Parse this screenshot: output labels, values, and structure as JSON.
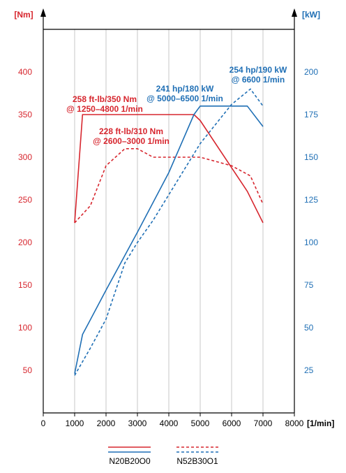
{
  "chart_data": {
    "type": "line",
    "x_axis": {
      "unit_label": "[1/min]",
      "range": [
        0,
        8000
      ],
      "ticks": [
        0,
        1000,
        2000,
        3000,
        4000,
        5000,
        6000,
        7000,
        8000
      ],
      "tick_labels": [
        "0",
        "1000",
        "2000",
        "3000",
        "4000",
        "5000",
        "6000",
        "7000",
        "8000"
      ]
    },
    "y_left": {
      "unit_label": "[Nm]",
      "color": "#d7262e",
      "range": [
        0,
        450
      ],
      "ticks": [
        50,
        100,
        150,
        200,
        250,
        300,
        350,
        400
      ],
      "tick_labels": [
        "50",
        "100",
        "150",
        "200",
        "250",
        "300",
        "350",
        "400"
      ]
    },
    "y_right": {
      "unit_label": "[kW]",
      "color": "#1f6fb5",
      "range": [
        0,
        225
      ],
      "ticks": [
        25,
        50,
        75,
        100,
        125,
        150,
        175,
        200
      ],
      "tick_labels": [
        "25",
        "50",
        "75",
        "100",
        "125",
        "150",
        "175",
        "200"
      ]
    },
    "grid": "vertical-lines-only",
    "series": [
      {
        "name": "N20B20O0",
        "quantity": "torque",
        "axis": "left",
        "style": "solid",
        "color": "#d7262e",
        "x": [
          1000,
          1250,
          4800,
          5000,
          6500,
          7000
        ],
        "y": [
          223,
          350,
          350,
          343,
          260,
          223
        ]
      },
      {
        "name": "N52B30O1",
        "quantity": "torque",
        "axis": "left",
        "style": "dashed",
        "color": "#d7262e",
        "x": [
          1000,
          1500,
          2000,
          2600,
          3000,
          3500,
          4000,
          5000,
          6000,
          6600,
          7000
        ],
        "y": [
          223,
          243,
          290,
          310,
          310,
          300,
          300,
          300,
          290,
          278,
          245
        ]
      },
      {
        "name": "N20B20O0",
        "quantity": "power",
        "axis": "right",
        "style": "solid",
        "color": "#1f6fb5",
        "x": [
          1000,
          1250,
          2000,
          3000,
          4000,
          4800,
          5000,
          6500,
          7000
        ],
        "y": [
          23,
          46,
          72,
          106,
          141,
          175,
          180,
          180,
          168
        ]
      },
      {
        "name": "N52B30O1",
        "quantity": "power",
        "axis": "right",
        "style": "dashed",
        "color": "#1f6fb5",
        "x": [
          1000,
          1500,
          2000,
          2600,
          3000,
          3500,
          4000,
          5000,
          6000,
          6600,
          7000
        ],
        "y": [
          22,
          38,
          55,
          88,
          100,
          113,
          128,
          158,
          181,
          190,
          180
        ]
      }
    ],
    "annotations": [
      {
        "id": "torque-solid",
        "color": "#d7262e",
        "lines": [
          "258 ft-lb/350 Nm",
          "@ 1250–4800 1/min"
        ]
      },
      {
        "id": "torque-dashed",
        "color": "#d7262e",
        "lines": [
          "228 ft-lb/310 Nm",
          "@ 2600–3000 1/min"
        ]
      },
      {
        "id": "power-solid",
        "color": "#1f6fb5",
        "lines": [
          "241 hp/180 kW",
          "@ 5000–6500 1/min"
        ]
      },
      {
        "id": "power-dashed",
        "color": "#1f6fb5",
        "lines": [
          "254 hp/190 kW",
          "@ 6600 1/min"
        ]
      }
    ],
    "legend": {
      "placement": "bottom",
      "items": [
        {
          "label": "N20B20O0",
          "style": "solid"
        },
        {
          "label": "N52B30O1",
          "style": "dashed"
        }
      ]
    }
  }
}
